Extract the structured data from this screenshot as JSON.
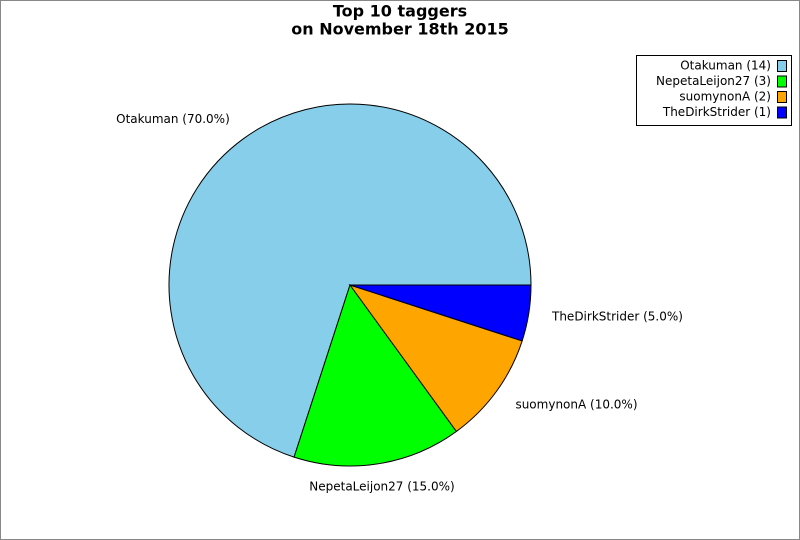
{
  "chart_data": {
    "type": "pie",
    "title": "Top 10 taggers",
    "subtitle": "on November 18th 2015",
    "categories": [
      "Otakuman",
      "NepetaLeijon27",
      "suomynonA",
      "TheDirkStrider"
    ],
    "values": [
      14,
      3,
      2,
      1
    ],
    "value_labels": [
      "Otakuman (70.0%)",
      "NepetaLeijon27 (15.0%)",
      "suomynonA (10.0%)",
      "TheDirkStrider (5.0%)"
    ],
    "legend_labels": [
      "Otakuman (14)",
      "NepetaLeijon27 (3)",
      "suomynonA (2)",
      "TheDirkStrider (1)"
    ],
    "colors": [
      "#87ceeb",
      "#00ff00",
      "#ffa500",
      "#0000ff"
    ],
    "legend": "top-right"
  }
}
